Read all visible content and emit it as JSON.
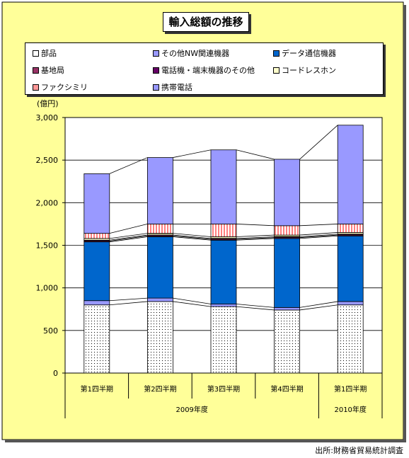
{
  "title": "輸入総額の推移",
  "source": "出所:財務省貿易統計調査",
  "colors": {
    "background": "#ffff99",
    "parts": "#ffffff",
    "nw": "#9999ff",
    "datacomm": "#0066cc",
    "base": "#993366",
    "phone_other": "#660066",
    "cordless": "#ffffcc",
    "fax": "#ff9999",
    "mobile": "#9999ff"
  },
  "chart_data": {
    "type": "bar",
    "stacked": true,
    "unit_label": "(億円)",
    "categories": [
      "第1四半期",
      "第2四半期",
      "第3四半期",
      "第4四半期",
      "第1四半期"
    ],
    "year_groups": [
      {
        "label": "2009年度",
        "count": 4
      },
      {
        "label": "2010年度",
        "count": 1
      }
    ],
    "ylim": [
      0,
      3000
    ],
    "yticks": [
      "0",
      "500",
      "1,000",
      "1,500",
      "2,000",
      "2,500",
      "3,000"
    ],
    "grid": true,
    "legend_position": "top",
    "series": [
      {
        "name": "部品",
        "key": "parts",
        "values": [
          800,
          840,
          780,
          740,
          800
        ]
      },
      {
        "name": "その他NW関連機器",
        "key": "nw",
        "values": [
          50,
          40,
          30,
          30,
          40
        ]
      },
      {
        "name": "データ通信機器",
        "key": "datacomm",
        "values": [
          690,
          720,
          750,
          810,
          770
        ]
      },
      {
        "name": "基地局",
        "key": "base",
        "values": [
          10,
          10,
          10,
          10,
          10
        ]
      },
      {
        "name": "電話機・端末機器のその他",
        "key": "phone_other",
        "values": [
          10,
          10,
          10,
          10,
          10
        ]
      },
      {
        "name": "コードレスホン",
        "key": "cordless",
        "values": [
          20,
          20,
          20,
          20,
          20
        ]
      },
      {
        "name": "ファクシミリ",
        "key": "fax",
        "values": [
          60,
          110,
          150,
          110,
          100
        ]
      },
      {
        "name": "携帯電話",
        "key": "mobile",
        "values": [
          700,
          780,
          870,
          780,
          1160
        ]
      }
    ]
  }
}
